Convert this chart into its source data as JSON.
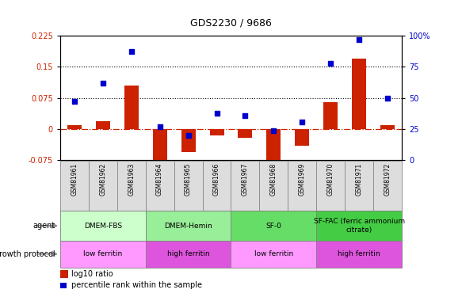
{
  "title": "GDS2230 / 9686",
  "samples": [
    "GSM81961",
    "GSM81962",
    "GSM81963",
    "GSM81964",
    "GSM81965",
    "GSM81966",
    "GSM81967",
    "GSM81968",
    "GSM81969",
    "GSM81970",
    "GSM81971",
    "GSM81972"
  ],
  "log10_ratio": [
    0.01,
    0.02,
    0.105,
    -0.095,
    -0.055,
    -0.015,
    -0.02,
    -0.1,
    -0.04,
    0.065,
    0.17,
    0.01
  ],
  "percentile_rank": [
    47,
    62,
    87,
    27,
    20,
    38,
    36,
    24,
    31,
    78,
    97,
    50
  ],
  "ylim_left": [
    -0.075,
    0.225
  ],
  "ylim_right": [
    0,
    100
  ],
  "yticks_left": [
    -0.075,
    0,
    0.075,
    0.15,
    0.225
  ],
  "yticks_right": [
    0,
    25,
    50,
    75,
    100
  ],
  "hlines": [
    0.075,
    0.15
  ],
  "bar_color": "#cc2200",
  "scatter_color": "#0000cc",
  "dashed_color": "#cc2200",
  "agent_groups": [
    {
      "label": "DMEM-FBS",
      "start": 0,
      "end": 3,
      "color": "#ccffcc"
    },
    {
      "label": "DMEM-Hemin",
      "start": 3,
      "end": 6,
      "color": "#99ee99"
    },
    {
      "label": "SF-0",
      "start": 6,
      "end": 9,
      "color": "#66dd66"
    },
    {
      "label": "SF-FAC (ferric ammonium\ncitrate)",
      "start": 9,
      "end": 12,
      "color": "#44cc44"
    }
  ],
  "protocol_groups": [
    {
      "label": "low ferritin",
      "start": 0,
      "end": 3,
      "color": "#ff99ff"
    },
    {
      "label": "high ferritin",
      "start": 3,
      "end": 6,
      "color": "#dd55dd"
    },
    {
      "label": "low ferritin",
      "start": 6,
      "end": 9,
      "color": "#ff99ff"
    },
    {
      "label": "high ferritin",
      "start": 9,
      "end": 12,
      "color": "#dd55dd"
    }
  ],
  "legend_bar_label": "log10 ratio",
  "legend_scatter_label": "percentile rank within the sample",
  "tick_bg_color": "#dddddd",
  "tick_border_color": "#888888"
}
